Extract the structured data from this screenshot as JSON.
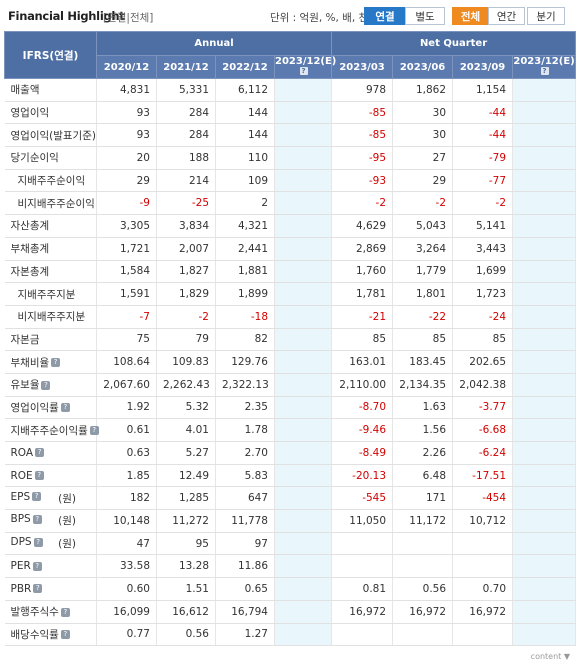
{
  "header": {
    "title": "Financial Highlight",
    "subtitle": "[연결|전체]",
    "unit": "단위 : 억원, %, 배, 천주",
    "buttons": [
      {
        "label": "연결",
        "active": true
      },
      {
        "label": "별도",
        "active": false
      },
      {
        "label": "전체",
        "active": true
      },
      {
        "label": "연간",
        "active": false
      },
      {
        "label": "분기",
        "active": false
      }
    ]
  },
  "table": {
    "corner_label": "IFRS(연결)",
    "group_headers": [
      "Annual",
      "Net Quarter"
    ],
    "columns": [
      "2020/12",
      "2021/12",
      "2022/12",
      "2023/12(E)",
      "2023/03",
      "2023/06",
      "2023/09",
      "2023/12(E)"
    ],
    "rows": [
      {
        "label": "매출액",
        "values": [
          "4,831",
          "5,331",
          "6,112",
          "",
          "978",
          "1,862",
          "1,154",
          ""
        ]
      },
      {
        "label": "영업이익",
        "values": [
          "93",
          "284",
          "144",
          "",
          "-85",
          "30",
          "-44",
          ""
        ]
      },
      {
        "label": "영업이익(발표기준)",
        "values": [
          "93",
          "284",
          "144",
          "",
          "-85",
          "30",
          "-44",
          ""
        ]
      },
      {
        "label": "당기순이익",
        "values": [
          "20",
          "188",
          "110",
          "",
          "-95",
          "27",
          "-79",
          ""
        ]
      },
      {
        "label": "지배주주순이익",
        "values": [
          "29",
          "214",
          "109",
          "",
          "-93",
          "29",
          "-77",
          ""
        ]
      },
      {
        "label": "비지배주주순이익",
        "values": [
          "-9",
          "-25",
          "2",
          "",
          "-2",
          "-2",
          "-2",
          ""
        ]
      },
      {
        "label": "자산총계",
        "values": [
          "3,305",
          "3,834",
          "4,321",
          "",
          "4,629",
          "5,043",
          "5,141",
          ""
        ]
      },
      {
        "label": "부채총계",
        "values": [
          "1,721",
          "2,007",
          "2,441",
          "",
          "2,869",
          "3,264",
          "3,443",
          ""
        ]
      },
      {
        "label": "자본총계",
        "values": [
          "1,584",
          "1,827",
          "1,881",
          "",
          "1,760",
          "1,779",
          "1,699",
          ""
        ]
      },
      {
        "label": "지배주주지분",
        "values": [
          "1,591",
          "1,829",
          "1,899",
          "",
          "1,781",
          "1,801",
          "1,723",
          ""
        ]
      },
      {
        "label": "비지배주주지분",
        "values": [
          "-7",
          "-2",
          "-18",
          "",
          "-21",
          "-22",
          "-24",
          ""
        ]
      },
      {
        "label": "자본금",
        "values": [
          "75",
          "79",
          "82",
          "",
          "85",
          "85",
          "85",
          ""
        ]
      },
      {
        "label": "부채비율",
        "values": [
          "108.64",
          "109.83",
          "129.76",
          "",
          "163.01",
          "183.45",
          "202.65",
          ""
        ]
      },
      {
        "label": "유보율",
        "values": [
          "2,067.60",
          "2,262.43",
          "2,322.13",
          "",
          "2,110.00",
          "2,134.35",
          "2,042.38",
          ""
        ]
      },
      {
        "label": "영업이익률",
        "values": [
          "1.92",
          "5.32",
          "2.35",
          "",
          "-8.70",
          "1.63",
          "-3.77",
          ""
        ]
      },
      {
        "label": "지배주주순이익률",
        "values": [
          "0.61",
          "4.01",
          "1.78",
          "",
          "-9.46",
          "1.56",
          "-6.68",
          ""
        ]
      },
      {
        "label": "ROA",
        "values": [
          "0.63",
          "5.27",
          "2.70",
          "",
          "-8.49",
          "2.26",
          "-6.24",
          ""
        ]
      },
      {
        "label": "ROE",
        "values": [
          "1.85",
          "12.49",
          "5.83",
          "",
          "-20.13",
          "6.48",
          "-17.51",
          ""
        ]
      },
      {
        "label": "EPS",
        "unit": "(원)",
        "values": [
          "182",
          "1,285",
          "647",
          "",
          "-545",
          "171",
          "-454",
          ""
        ]
      },
      {
        "label": "BPS",
        "unit": "(원)",
        "values": [
          "10,148",
          "11,272",
          "11,778",
          "",
          "11,050",
          "11,172",
          "10,712",
          ""
        ]
      },
      {
        "label": "DPS",
        "unit": "(원)",
        "values": [
          "47",
          "95",
          "97",
          "",
          "",
          "",
          "",
          ""
        ]
      },
      {
        "label": "PER",
        "values": [
          "33.58",
          "13.28",
          "11.86",
          "",
          "",
          "",
          "",
          ""
        ]
      },
      {
        "label": "PBR",
        "values": [
          "0.60",
          "1.51",
          "0.65",
          "",
          "0.81",
          "0.56",
          "0.70",
          ""
        ]
      },
      {
        "label": "발행주식수",
        "values": [
          "16,099",
          "16,612",
          "16,794",
          "",
          "16,972",
          "16,972",
          "16,972",
          ""
        ]
      },
      {
        "label": "배당수익률",
        "values": [
          "0.77",
          "0.56",
          "1.27",
          "",
          "",
          "",
          "",
          ""
        ]
      }
    ]
  },
  "footer": {
    "text": "content ▼"
  },
  "colors": {
    "header_bg": "#4d6fa3",
    "estimate_bg": "#e9f6fb",
    "negative": "#d40000",
    "active_blue": "#2878c8",
    "active_orange": "#ef8a21"
  }
}
